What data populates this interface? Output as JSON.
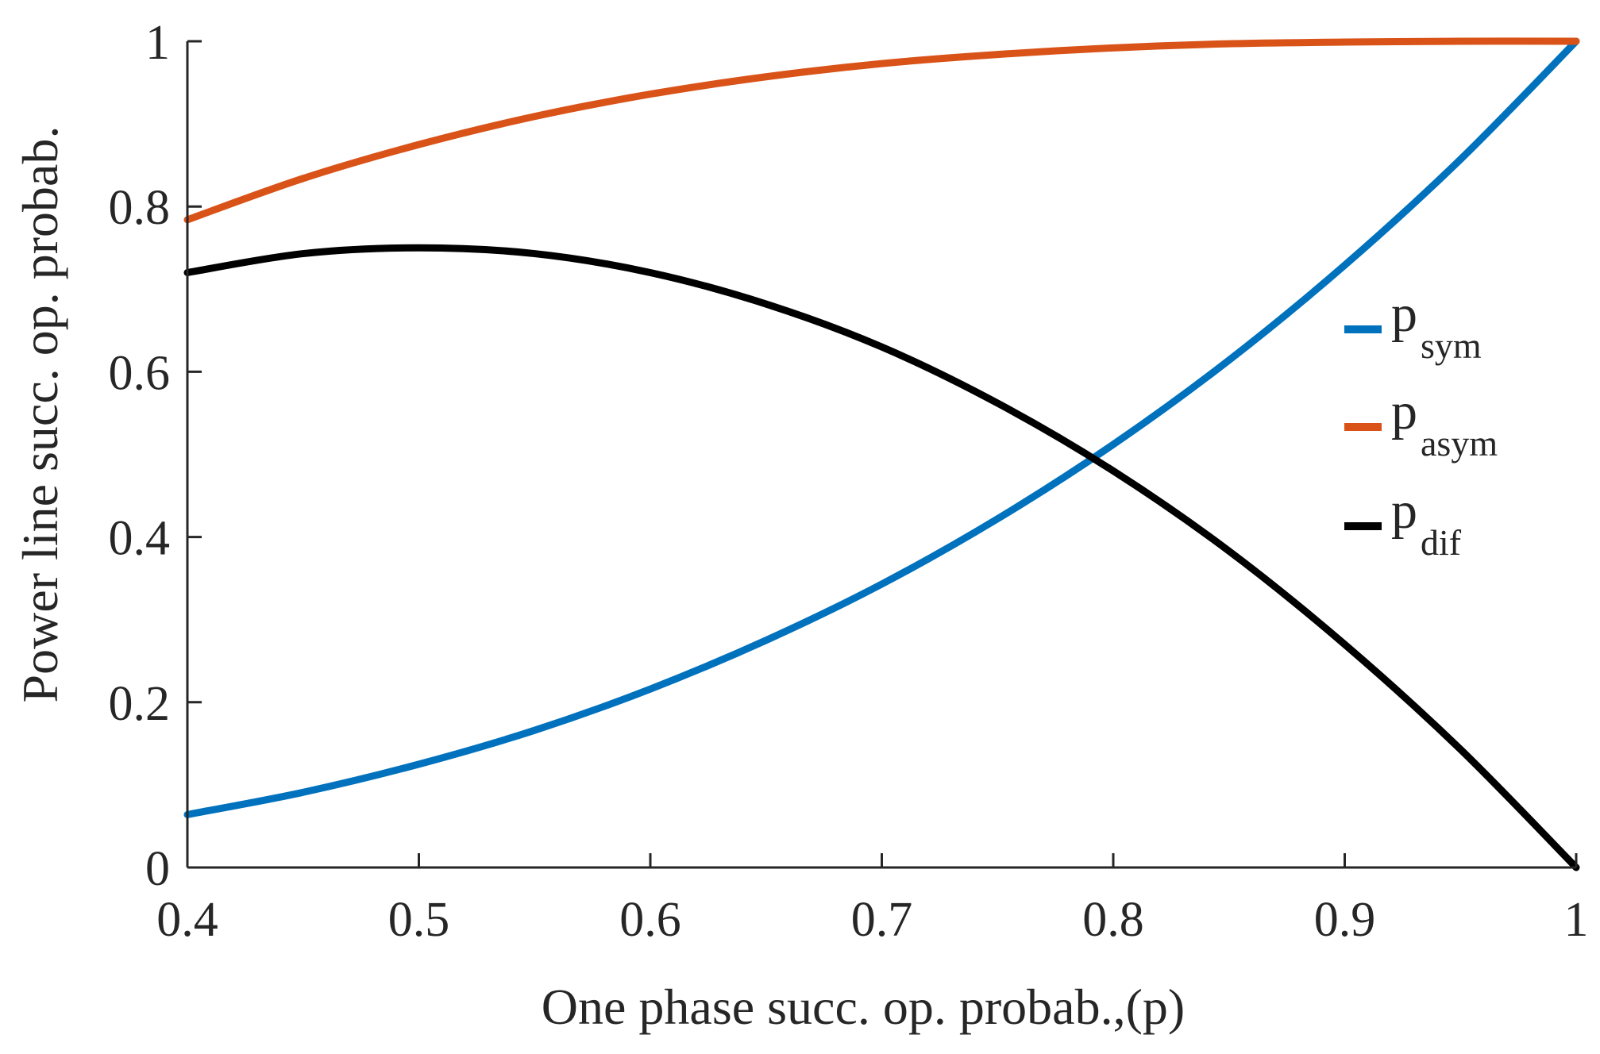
{
  "chart_data": {
    "type": "line",
    "title": "",
    "xlabel": "One phase succ. op. probab.,(p)",
    "ylabel": "Power line succ. op. probab.",
    "xlim": [
      0.4,
      1
    ],
    "ylim": [
      0,
      1
    ],
    "x_ticks": [
      0.4,
      0.5,
      0.6,
      0.7,
      0.8,
      0.9,
      1
    ],
    "x_tick_labels": [
      "0.4",
      "0.5",
      "0.6",
      "0.7",
      "0.8",
      "0.9",
      "1"
    ],
    "y_ticks": [
      0,
      0.2,
      0.4,
      0.6,
      0.8,
      1
    ],
    "y_tick_labels": [
      "0",
      "0.2",
      "0.4",
      "0.6",
      "0.8",
      "1"
    ],
    "grid": false,
    "legend_position": "right",
    "x": [
      0.4,
      0.45,
      0.5,
      0.55,
      0.6,
      0.65,
      0.7,
      0.75,
      0.8,
      0.85,
      0.9,
      0.95,
      1
    ],
    "series": [
      {
        "name": "p_sym",
        "label_base": "p",
        "label_sub": "sym",
        "color": "#0072BD",
        "values": [
          0.064,
          0.091,
          0.125,
          0.166,
          0.216,
          0.275,
          0.343,
          0.422,
          0.512,
          0.614,
          0.729,
          0.857,
          1.0
        ]
      },
      {
        "name": "p_asym",
        "label_base": "p",
        "label_sub": "asym",
        "color": "#D95319",
        "values": [
          0.784,
          0.834,
          0.875,
          0.909,
          0.936,
          0.957,
          0.973,
          0.984,
          0.992,
          0.997,
          0.999,
          1.0,
          1.0
        ]
      },
      {
        "name": "p_dif",
        "label_base": "p",
        "label_sub": "dif",
        "color": "#000000",
        "values": [
          0.72,
          0.743,
          0.75,
          0.743,
          0.72,
          0.682,
          0.63,
          0.562,
          0.48,
          0.383,
          0.27,
          0.143,
          0.0
        ]
      }
    ]
  }
}
